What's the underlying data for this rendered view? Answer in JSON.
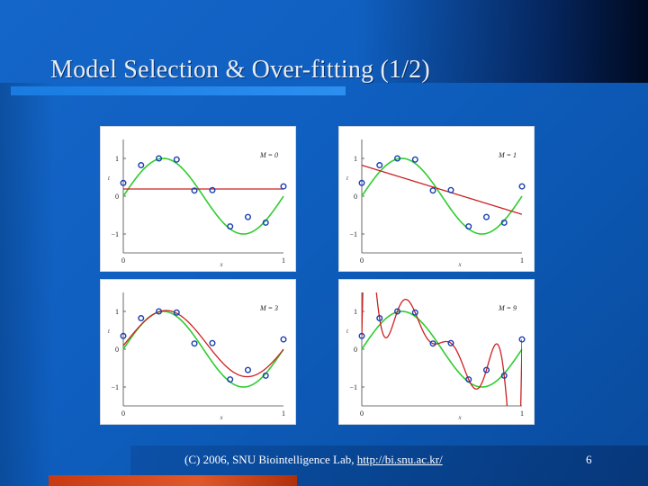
{
  "slide": {
    "title": "Model Selection & Over-fitting (1/2)",
    "footer_prefix": "(C) 2006, SNU Biointelligence Lab, ",
    "footer_link": "http://bi.snu.ac.kr/",
    "page_number": "6"
  },
  "colors": {
    "true_curve": "#2fcc2f",
    "fit_curve": "#cc2020",
    "data_point": "#1a3fb0"
  },
  "chart_data": [
    {
      "type": "line",
      "label": "M = 0",
      "xlabel": "x",
      "ylabel": "t",
      "xlim": [
        0,
        1
      ],
      "ylim": [
        -1.5,
        1.5
      ],
      "xticks": [
        "0",
        "1"
      ],
      "yticks": [
        "1",
        "0",
        "−1"
      ],
      "points": [
        [
          0.0,
          0.35
        ],
        [
          0.111,
          0.82
        ],
        [
          0.222,
          1.0
        ],
        [
          0.333,
          0.97
        ],
        [
          0.444,
          0.15
        ],
        [
          0.556,
          0.16
        ],
        [
          0.667,
          -0.8
        ],
        [
          0.778,
          -0.55
        ],
        [
          0.889,
          -0.7
        ],
        [
          1.0,
          0.26
        ]
      ],
      "fit": {
        "kind": "poly",
        "coeffs": [
          0.19
        ]
      }
    },
    {
      "type": "line",
      "label": "M = 1",
      "xlabel": "x",
      "ylabel": "t",
      "xlim": [
        0,
        1
      ],
      "ylim": [
        -1.5,
        1.5
      ],
      "xticks": [
        "0",
        "1"
      ],
      "yticks": [
        "1",
        "0",
        "−1"
      ],
      "points": [
        [
          0.0,
          0.35
        ],
        [
          0.111,
          0.82
        ],
        [
          0.222,
          1.0
        ],
        [
          0.333,
          0.97
        ],
        [
          0.444,
          0.15
        ],
        [
          0.556,
          0.16
        ],
        [
          0.667,
          -0.8
        ],
        [
          0.778,
          -0.55
        ],
        [
          0.889,
          -0.7
        ],
        [
          1.0,
          0.26
        ]
      ],
      "fit": {
        "kind": "poly",
        "coeffs": [
          0.82,
          -1.3
        ]
      }
    },
    {
      "type": "line",
      "label": "M = 3",
      "xlabel": "x",
      "ylabel": "t",
      "xlim": [
        0,
        1
      ],
      "ylim": [
        -1.5,
        1.5
      ],
      "xticks": [
        "0",
        "1"
      ],
      "yticks": [
        "1",
        "0",
        "−1"
      ],
      "points": [
        [
          0.0,
          0.35
        ],
        [
          0.111,
          0.82
        ],
        [
          0.222,
          1.0
        ],
        [
          0.333,
          0.97
        ],
        [
          0.444,
          0.15
        ],
        [
          0.556,
          0.16
        ],
        [
          0.667,
          -0.8
        ],
        [
          0.778,
          -0.55
        ],
        [
          0.889,
          -0.7
        ],
        [
          1.0,
          0.26
        ]
      ],
      "fit": {
        "kind": "cubic_like"
      }
    },
    {
      "type": "line",
      "label": "M = 9",
      "xlabel": "x",
      "ylabel": "t",
      "xlim": [
        0,
        1
      ],
      "ylim": [
        -1.5,
        1.5
      ],
      "xticks": [
        "0",
        "1"
      ],
      "yticks": [
        "1",
        "0",
        "−1"
      ],
      "points": [
        [
          0.0,
          0.35
        ],
        [
          0.111,
          0.82
        ],
        [
          0.222,
          1.0
        ],
        [
          0.333,
          0.97
        ],
        [
          0.444,
          0.15
        ],
        [
          0.556,
          0.16
        ],
        [
          0.667,
          -0.8
        ],
        [
          0.778,
          -0.55
        ],
        [
          0.889,
          -0.7
        ],
        [
          1.0,
          0.26
        ]
      ],
      "fit": {
        "kind": "interpolate"
      }
    }
  ]
}
